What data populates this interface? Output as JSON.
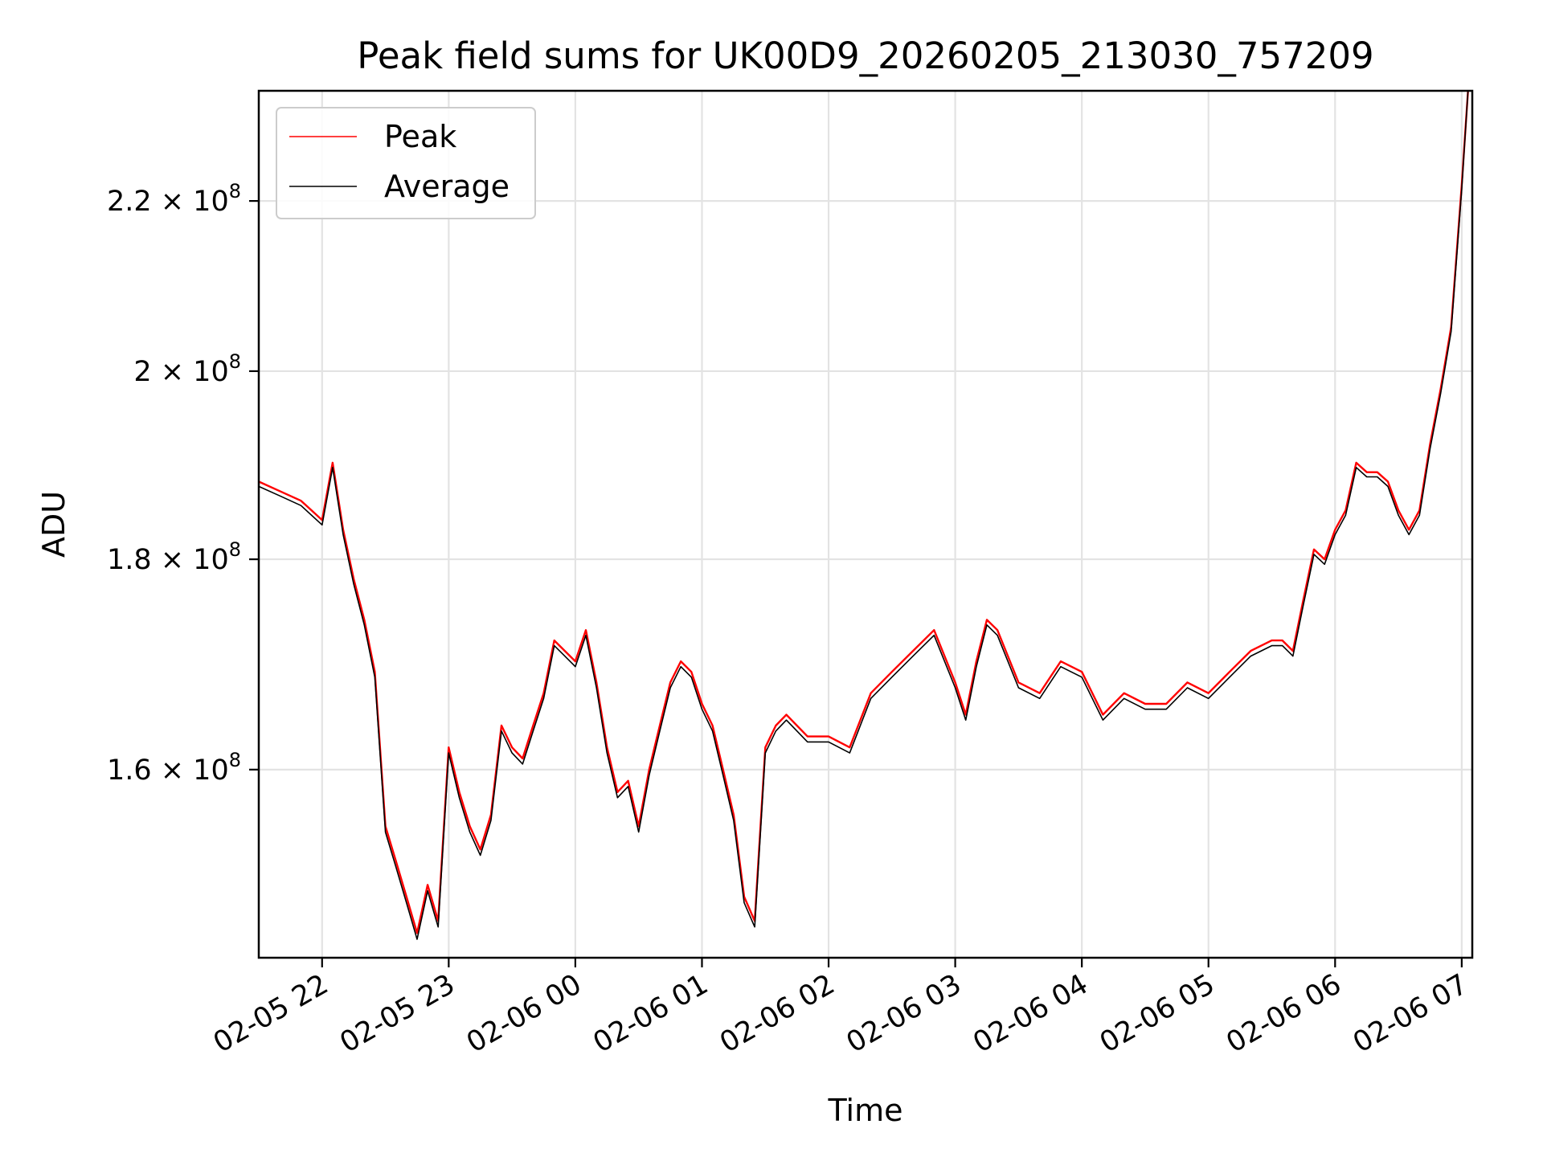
{
  "chart_data": {
    "type": "line",
    "title": "Peak field sums for UK00D9_20260205_213030_757209",
    "xlabel": "Time",
    "ylabel": "ADU",
    "y_scale": "log",
    "grid": true,
    "legend": "upper left",
    "xlim": [
      "2026-02-05 21:30",
      "2026-02-06 07:05"
    ],
    "ylim": [
      144000000,
      234000000
    ],
    "x_ticks": [
      {
        "value": "2026-02-05 22:00",
        "label": "02-05 22"
      },
      {
        "value": "2026-02-05 23:00",
        "label": "02-05 23"
      },
      {
        "value": "2026-02-06 00:00",
        "label": "02-06 00"
      },
      {
        "value": "2026-02-06 01:00",
        "label": "02-06 01"
      },
      {
        "value": "2026-02-06 02:00",
        "label": "02-06 02"
      },
      {
        "value": "2026-02-06 03:00",
        "label": "02-06 03"
      },
      {
        "value": "2026-02-06 04:00",
        "label": "02-06 04"
      },
      {
        "value": "2026-02-06 05:00",
        "label": "02-06 05"
      },
      {
        "value": "2026-02-06 06:00",
        "label": "02-06 06"
      },
      {
        "value": "2026-02-06 07:00",
        "label": "02-06 07"
      }
    ],
    "y_ticks": [
      {
        "value": 160000000,
        "mantissa": "1.6",
        "base": "10",
        "exponent": "8"
      },
      {
        "value": 180000000,
        "mantissa": "1.8",
        "base": "10",
        "exponent": "8"
      },
      {
        "value": 200000000,
        "mantissa": "2",
        "base": "10",
        "exponent": "8"
      },
      {
        "value": 220000000,
        "mantissa": "2.2",
        "base": "10",
        "exponent": "8"
      }
    ],
    "series": [
      {
        "name": "Peak",
        "color": "#ff0000",
        "x": [
          "2026-02-05 21:30",
          "2026-02-05 21:40",
          "2026-02-05 21:50",
          "2026-02-05 22:00",
          "2026-02-05 22:05",
          "2026-02-05 22:10",
          "2026-02-05 22:15",
          "2026-02-05 22:20",
          "2026-02-05 22:25",
          "2026-02-05 22:30",
          "2026-02-05 22:35",
          "2026-02-05 22:40",
          "2026-02-05 22:45",
          "2026-02-05 22:50",
          "2026-02-05 22:55",
          "2026-02-05 23:00",
          "2026-02-05 23:05",
          "2026-02-05 23:10",
          "2026-02-05 23:15",
          "2026-02-05 23:20",
          "2026-02-05 23:25",
          "2026-02-05 23:30",
          "2026-02-05 23:35",
          "2026-02-05 23:40",
          "2026-02-05 23:45",
          "2026-02-05 23:50",
          "2026-02-05 23:55",
          "2026-02-06 00:00",
          "2026-02-06 00:05",
          "2026-02-06 00:10",
          "2026-02-06 00:15",
          "2026-02-06 00:20",
          "2026-02-06 00:25",
          "2026-02-06 00:30",
          "2026-02-06 00:35",
          "2026-02-06 00:40",
          "2026-02-06 00:45",
          "2026-02-06 00:50",
          "2026-02-06 00:55",
          "2026-02-06 01:00",
          "2026-02-06 01:05",
          "2026-02-06 01:10",
          "2026-02-06 01:15",
          "2026-02-06 01:20",
          "2026-02-06 01:25",
          "2026-02-06 01:30",
          "2026-02-06 01:35",
          "2026-02-06 01:40",
          "2026-02-06 01:50",
          "2026-02-06 02:00",
          "2026-02-06 02:10",
          "2026-02-06 02:20",
          "2026-02-06 02:30",
          "2026-02-06 02:40",
          "2026-02-06 02:50",
          "2026-02-06 03:00",
          "2026-02-06 03:05",
          "2026-02-06 03:10",
          "2026-02-06 03:15",
          "2026-02-06 03:20",
          "2026-02-06 03:30",
          "2026-02-06 03:40",
          "2026-02-06 03:50",
          "2026-02-06 04:00",
          "2026-02-06 04:10",
          "2026-02-06 04:20",
          "2026-02-06 04:30",
          "2026-02-06 04:40",
          "2026-02-06 04:50",
          "2026-02-06 05:00",
          "2026-02-06 05:10",
          "2026-02-06 05:20",
          "2026-02-06 05:30",
          "2026-02-06 05:35",
          "2026-02-06 05:40",
          "2026-02-06 05:45",
          "2026-02-06 05:50",
          "2026-02-06 05:55",
          "2026-02-06 06:00",
          "2026-02-06 06:05",
          "2026-02-06 06:10",
          "2026-02-06 06:15",
          "2026-02-06 06:20",
          "2026-02-06 06:25",
          "2026-02-06 06:30",
          "2026-02-06 06:35",
          "2026-02-06 06:40",
          "2026-02-06 06:45",
          "2026-02-06 06:50",
          "2026-02-06 06:55",
          "2026-02-06 07:00",
          "2026-02-06 07:03"
        ],
        "values": [
          188000000,
          187000000,
          186000000,
          184000000,
          190000000,
          183000000,
          178000000,
          174000000,
          169000000,
          155000000,
          152000000,
          149000000,
          146000000,
          150000000,
          147000000,
          162000000,
          158000000,
          155000000,
          153000000,
          156000000,
          164000000,
          162000000,
          161000000,
          164000000,
          167000000,
          172000000,
          171000000,
          170000000,
          173000000,
          168000000,
          162000000,
          158000000,
          159000000,
          155000000,
          160000000,
          164000000,
          168000000,
          170000000,
          169000000,
          166000000,
          164000000,
          160000000,
          156000000,
          149000000,
          147000000,
          162000000,
          164000000,
          165000000,
          163000000,
          163000000,
          162000000,
          167000000,
          169000000,
          171000000,
          173000000,
          168000000,
          165000000,
          170000000,
          174000000,
          173000000,
          168000000,
          167000000,
          170000000,
          169000000,
          165000000,
          167000000,
          166000000,
          166000000,
          168000000,
          167000000,
          169000000,
          171000000,
          172000000,
          172000000,
          171000000,
          176000000,
          181000000,
          180000000,
          183000000,
          185000000,
          190000000,
          189000000,
          189000000,
          188000000,
          185000000,
          183000000,
          185000000,
          192000000,
          198000000,
          205000000,
          222000000,
          234000000
        ]
      },
      {
        "name": "Average",
        "color": "#000000",
        "x": [
          "2026-02-05 21:30",
          "2026-02-05 21:40",
          "2026-02-05 21:50",
          "2026-02-05 22:00",
          "2026-02-05 22:05",
          "2026-02-05 22:10",
          "2026-02-05 22:15",
          "2026-02-05 22:20",
          "2026-02-05 22:25",
          "2026-02-05 22:30",
          "2026-02-05 22:35",
          "2026-02-05 22:40",
          "2026-02-05 22:45",
          "2026-02-05 22:50",
          "2026-02-05 22:55",
          "2026-02-05 23:00",
          "2026-02-05 23:05",
          "2026-02-05 23:10",
          "2026-02-05 23:15",
          "2026-02-05 23:20",
          "2026-02-05 23:25",
          "2026-02-05 23:30",
          "2026-02-05 23:35",
          "2026-02-05 23:40",
          "2026-02-05 23:45",
          "2026-02-05 23:50",
          "2026-02-05 23:55",
          "2026-02-06 00:00",
          "2026-02-06 00:05",
          "2026-02-06 00:10",
          "2026-02-06 00:15",
          "2026-02-06 00:20",
          "2026-02-06 00:25",
          "2026-02-06 00:30",
          "2026-02-06 00:35",
          "2026-02-06 00:40",
          "2026-02-06 00:45",
          "2026-02-06 00:50",
          "2026-02-06 00:55",
          "2026-02-06 01:00",
          "2026-02-06 01:05",
          "2026-02-06 01:10",
          "2026-02-06 01:15",
          "2026-02-06 01:20",
          "2026-02-06 01:25",
          "2026-02-06 01:30",
          "2026-02-06 01:35",
          "2026-02-06 01:40",
          "2026-02-06 01:50",
          "2026-02-06 02:00",
          "2026-02-06 02:10",
          "2026-02-06 02:20",
          "2026-02-06 02:30",
          "2026-02-06 02:40",
          "2026-02-06 02:50",
          "2026-02-06 03:00",
          "2026-02-06 03:05",
          "2026-02-06 03:10",
          "2026-02-06 03:15",
          "2026-02-06 03:20",
          "2026-02-06 03:30",
          "2026-02-06 03:40",
          "2026-02-06 03:50",
          "2026-02-06 04:00",
          "2026-02-06 04:10",
          "2026-02-06 04:20",
          "2026-02-06 04:30",
          "2026-02-06 04:40",
          "2026-02-06 04:50",
          "2026-02-06 05:00",
          "2026-02-06 05:10",
          "2026-02-06 05:20",
          "2026-02-06 05:30",
          "2026-02-06 05:35",
          "2026-02-06 05:40",
          "2026-02-06 05:45",
          "2026-02-06 05:50",
          "2026-02-06 05:55",
          "2026-02-06 06:00",
          "2026-02-06 06:05",
          "2026-02-06 06:10",
          "2026-02-06 06:15",
          "2026-02-06 06:20",
          "2026-02-06 06:25",
          "2026-02-06 06:30",
          "2026-02-06 06:35",
          "2026-02-06 06:40",
          "2026-02-06 06:45",
          "2026-02-06 06:50",
          "2026-02-06 06:55",
          "2026-02-06 07:00",
          "2026-02-06 07:03"
        ],
        "values": [
          187500000,
          186500000,
          185500000,
          183500000,
          189500000,
          182500000,
          177500000,
          173500000,
          168500000,
          154500000,
          151500000,
          148500000,
          145500000,
          149500000,
          146500000,
          161500000,
          157500000,
          154500000,
          152500000,
          155500000,
          163500000,
          161500000,
          160500000,
          163500000,
          166500000,
          171500000,
          170500000,
          169500000,
          172500000,
          167500000,
          161500000,
          157500000,
          158500000,
          154500000,
          159500000,
          163500000,
          167500000,
          169500000,
          168500000,
          165500000,
          163500000,
          159500000,
          155500000,
          148500000,
          146500000,
          161500000,
          163500000,
          164500000,
          162500000,
          162500000,
          161500000,
          166500000,
          168500000,
          170500000,
          172500000,
          167500000,
          164500000,
          169500000,
          173500000,
          172500000,
          167500000,
          166500000,
          169500000,
          168500000,
          164500000,
          166500000,
          165500000,
          165500000,
          167500000,
          166500000,
          168500000,
          170500000,
          171500000,
          171500000,
          170500000,
          175500000,
          180500000,
          179500000,
          182500000,
          184500000,
          189500000,
          188500000,
          188500000,
          187500000,
          184500000,
          182500000,
          184500000,
          191500000,
          197500000,
          204500000,
          221500000,
          234000000
        ]
      }
    ]
  }
}
